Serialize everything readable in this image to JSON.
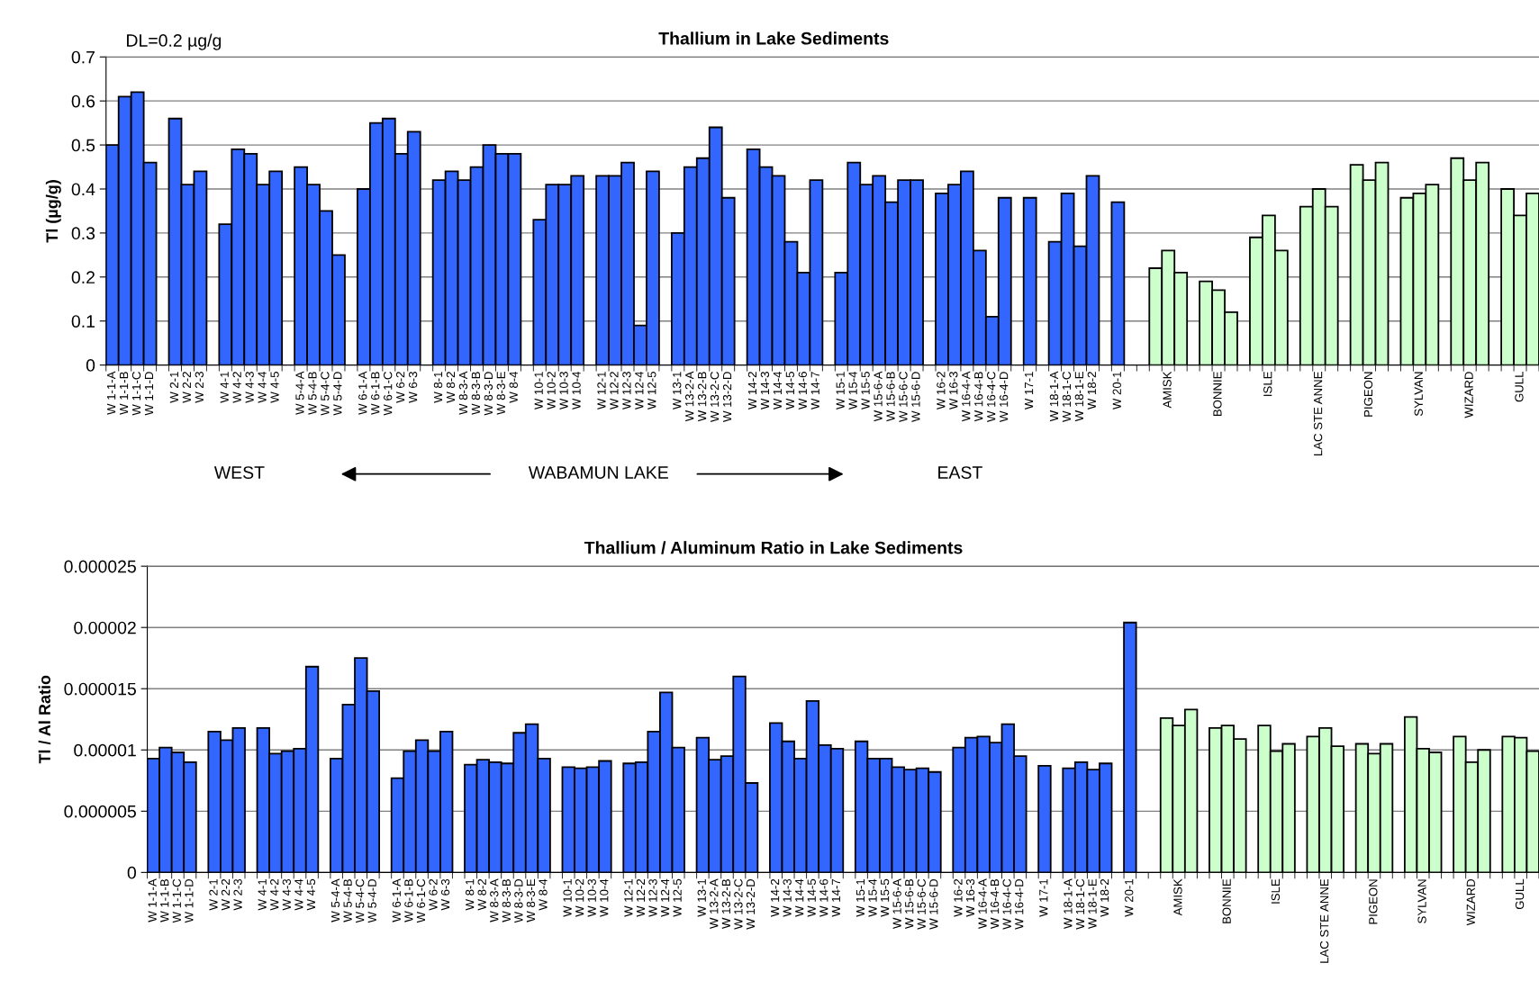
{
  "chart_data": [
    {
      "type": "bar",
      "title": "Thallium in Lake Sediments",
      "ylabel": "Tl (µg/g)",
      "grid": "y",
      "annotations": [
        "DL=0.2 µg/g",
        "WEST",
        "WABAMUN LAKE",
        "EAST"
      ],
      "ylim": [
        0,
        0.7
      ],
      "yticks": [
        0,
        0.1,
        0.2,
        0.3,
        0.4,
        0.5,
        0.6,
        0.7
      ],
      "categories": [
        "W 1-1-A",
        "W 1-1-B",
        "W 1-1-C",
        "W 1-1-D",
        null,
        "W 2-1",
        "W 2-2",
        "W 2-3",
        null,
        "W 4-1",
        "W 4-2",
        "W 4-3",
        "W 4-4",
        "W 4-5",
        null,
        "W 5-4-A",
        "W 5-4-B",
        "W 5-4-C",
        "W 5-4-D",
        null,
        "W 6-1-A",
        "W 6-1-B",
        "W 6-1-C",
        "W 6-2",
        "W 6-3",
        null,
        "W 8-1",
        "W 8-2",
        "W 8-3-A",
        "W 8-3-B",
        "W 8-3-D",
        "W 8-3-E",
        "W 8-4",
        null,
        "W 10-1",
        "W 10-2",
        "W 10-3",
        "W 10-4",
        null,
        "W 12-1",
        "W 12-2",
        "W 12-3",
        "W 12-4",
        "W 12-5",
        null,
        "W 13-1",
        "W 13-2-A",
        "W 13-2-B",
        "W 13-2-C",
        "W 13-2-D",
        null,
        "W 14-2",
        "W 14-3",
        "W 14-4",
        "W 14-5",
        "W 14-6",
        "W 14-7",
        null,
        "W 15-1",
        "W 15-4",
        "W 15-5",
        "W 15-6-A",
        "W 15-6-B",
        "W 15-6-C",
        "W 15-6-D",
        null,
        "W 16-2",
        "W 16-3",
        "W 16-4-A",
        "W 16-4-B",
        "W 16-4-C",
        "W 16-4-D",
        null,
        "W 17-1",
        null,
        "W 18-1-A",
        "W 18-1-C",
        "W 18-1-E",
        "W 18-2",
        null,
        "W 20-1",
        null,
        null,
        null,
        "AMISK",
        null,
        null,
        null,
        "BONNIE",
        null,
        null,
        null,
        "ISLE",
        null,
        null,
        null,
        "LAC STE ANNE",
        null,
        null,
        null,
        "PIGEON",
        null,
        null,
        null,
        "SYLVAN",
        null,
        null,
        null,
        "WIZARD",
        null,
        null,
        null,
        "GULL",
        null
      ],
      "series": [
        {
          "color": "#3366ff",
          "values": [
            0.5,
            0.61,
            0.62,
            0.46,
            null,
            0.56,
            0.41,
            0.44,
            null,
            0.32,
            0.49,
            0.48,
            0.41,
            0.44,
            null,
            0.45,
            0.41,
            0.35,
            0.25,
            null,
            0.4,
            0.55,
            0.56,
            0.48,
            0.53,
            null,
            0.42,
            0.44,
            0.42,
            0.45,
            0.5,
            0.48,
            0.48,
            null,
            0.33,
            0.41,
            0.41,
            0.43,
            null,
            0.43,
            0.43,
            0.46,
            0.09,
            0.44,
            null,
            0.3,
            0.45,
            0.47,
            0.54,
            0.38,
            null,
            0.49,
            0.45,
            0.43,
            0.28,
            0.21,
            0.42,
            null,
            0.21,
            0.46,
            0.41,
            0.43,
            0.37,
            0.42,
            0.42,
            null,
            0.39,
            0.41,
            0.44,
            0.26,
            0.11,
            0.38,
            null,
            0.38,
            null,
            0.28,
            0.39,
            0.27,
            0.43,
            null,
            0.37,
            null,
            null,
            null,
            null,
            null,
            null,
            null,
            null,
            null,
            null,
            null,
            null,
            null,
            null,
            null,
            null,
            null,
            null,
            null,
            null,
            null,
            null,
            null,
            null,
            null,
            null,
            null,
            null,
            null,
            null,
            null,
            null,
            null
          ]
        },
        {
          "color": "#ccffcc",
          "values": [
            null,
            null,
            null,
            null,
            null,
            null,
            null,
            null,
            null,
            null,
            null,
            null,
            null,
            null,
            null,
            null,
            null,
            null,
            null,
            null,
            null,
            null,
            null,
            null,
            null,
            null,
            null,
            null,
            null,
            null,
            null,
            null,
            null,
            null,
            null,
            null,
            null,
            null,
            null,
            null,
            null,
            null,
            null,
            null,
            null,
            null,
            null,
            null,
            null,
            null,
            null,
            null,
            null,
            null,
            null,
            null,
            null,
            null,
            null,
            null,
            null,
            null,
            null,
            null,
            null,
            null,
            null,
            null,
            null,
            null,
            null,
            null,
            null,
            null,
            null,
            null,
            null,
            null,
            null,
            null,
            null,
            null,
            null,
            0.22,
            0.26,
            0.21,
            null,
            0.19,
            0.17,
            0.12,
            null,
            0.29,
            0.34,
            0.26,
            null,
            0.36,
            0.4,
            0.36,
            null,
            0.455,
            0.42,
            0.46,
            null,
            0.38,
            0.39,
            0.41,
            null,
            0.47,
            0.42,
            0.46,
            null,
            0.4,
            0.34,
            0.39
          ]
        }
      ]
    },
    {
      "type": "bar",
      "title": "Thallium / Aluminum Ratio in Lake Sediments",
      "ylabel": "Tl / Al Ratio",
      "grid": "y",
      "ylim": [
        0,
        2.5e-05
      ],
      "yticks": [
        0,
        {
          "value": 5e-06,
          "label": "0.000005"
        },
        {
          "value": 1e-05,
          "label": "0.00001"
        },
        {
          "value": 1.5e-05,
          "label": "0.000015"
        },
        {
          "value": 2e-05,
          "label": "0.00002"
        },
        {
          "value": 2.5e-05,
          "label": "0.000025"
        }
      ],
      "categories": [
        "W 1-1-A",
        "W 1-1-B",
        "W 1-1-C",
        "W 1-1-D",
        null,
        "W 2-1",
        "W 2-2",
        "W 2-3",
        null,
        "W 4-1",
        "W 4-2",
        "W 4-3",
        "W 4-4",
        "W 4-5",
        null,
        "W 5-4-A",
        "W 5-4-B",
        "W 5-4-C",
        "W 5-4-D",
        null,
        "W 6-1-A",
        "W 6-1-B",
        "W 6-1-C",
        "W 6-2",
        "W 6-3",
        null,
        "W 8-1",
        "W 8-2",
        "W 8-3-A",
        "W 8-3-B",
        "W 8-3-D",
        "W 8-3-E",
        "W 8-4",
        null,
        "W 10-1",
        "W 10-2",
        "W 10-3",
        "W 10-4",
        null,
        "W 12-1",
        "W 12-2",
        "W 12-3",
        "W 12-4",
        "W 12-5",
        null,
        "W 13-1",
        "W 13-2-A",
        "W 13-2-B",
        "W 13-2-C",
        "W 13-2-D",
        null,
        "W 14-2",
        "W 14-3",
        "W 14-4",
        "W 14-5",
        "W 14-6",
        "W 14-7",
        null,
        "W 15-1",
        "W 15-4",
        "W 15-5",
        "W 15-6-A",
        "W 15-6-B",
        "W 15-6-C",
        "W 15-6-D",
        null,
        "W 16-2",
        "W 16-3",
        "W 16-4-A",
        "W 16-4-B",
        "W 16-4-C",
        "W 16-4-D",
        null,
        "W 17-1",
        null,
        "W 18-1-A",
        "W 18-1-C",
        "W 18-1-E",
        "W 18-2",
        null,
        "W 20-1",
        null,
        null,
        null,
        "AMISK",
        null,
        null,
        null,
        "BONNIE",
        null,
        null,
        null,
        "ISLE",
        null,
        null,
        null,
        "LAC STE ANNE",
        null,
        null,
        null,
        "PIGEON",
        null,
        null,
        null,
        "SYLVAN",
        null,
        null,
        null,
        "WIZARD",
        null,
        null,
        null,
        "GULL",
        null
      ],
      "series": [
        {
          "color": "#3366ff",
          "values": [
            9.3e-06,
            1.02e-05,
            9.8e-06,
            9e-06,
            null,
            1.15e-05,
            1.08e-05,
            1.18e-05,
            null,
            1.18e-05,
            9.7e-06,
            9.9e-06,
            1.01e-05,
            1.68e-05,
            null,
            9.3e-06,
            1.37e-05,
            1.75e-05,
            1.48e-05,
            null,
            7.7e-06,
            9.9e-06,
            1.08e-05,
            9.9e-06,
            1.15e-05,
            null,
            8.8e-06,
            9.2e-06,
            9e-06,
            8.9e-06,
            1.14e-05,
            1.21e-05,
            9.3e-06,
            null,
            8.6e-06,
            8.5e-06,
            8.6e-06,
            9.1e-06,
            null,
            8.9e-06,
            9e-06,
            1.15e-05,
            1.47e-05,
            1.02e-05,
            null,
            1.1e-05,
            9.2e-06,
            9.5e-06,
            1.6e-05,
            7.3e-06,
            null,
            1.22e-05,
            1.07e-05,
            9.3e-06,
            1.4e-05,
            1.04e-05,
            1.01e-05,
            null,
            1.07e-05,
            9.3e-06,
            9.3e-06,
            8.6e-06,
            8.4e-06,
            8.5e-06,
            8.2e-06,
            null,
            1.02e-05,
            1.1e-05,
            1.11e-05,
            1.06e-05,
            1.21e-05,
            9.5e-06,
            null,
            8.7e-06,
            null,
            8.5e-06,
            9e-06,
            8.4e-06,
            8.9e-06,
            null,
            2.04e-05,
            null,
            null,
            null,
            null,
            null,
            null,
            null,
            null,
            null,
            null,
            null,
            null,
            null,
            null,
            null,
            null,
            null,
            null,
            null,
            null,
            null,
            null,
            null,
            null,
            null,
            null,
            null,
            null,
            null,
            null,
            null,
            null,
            null
          ]
        },
        {
          "color": "#ccffcc",
          "values": [
            null,
            null,
            null,
            null,
            null,
            null,
            null,
            null,
            null,
            null,
            null,
            null,
            null,
            null,
            null,
            null,
            null,
            null,
            null,
            null,
            null,
            null,
            null,
            null,
            null,
            null,
            null,
            null,
            null,
            null,
            null,
            null,
            null,
            null,
            null,
            null,
            null,
            null,
            null,
            null,
            null,
            null,
            null,
            null,
            null,
            null,
            null,
            null,
            null,
            null,
            null,
            null,
            null,
            null,
            null,
            null,
            null,
            null,
            null,
            null,
            null,
            null,
            null,
            null,
            null,
            null,
            null,
            null,
            null,
            null,
            null,
            null,
            null,
            null,
            null,
            null,
            null,
            null,
            null,
            null,
            null,
            null,
            null,
            1.26e-05,
            1.2e-05,
            1.33e-05,
            null,
            1.18e-05,
            1.2e-05,
            1.09e-05,
            null,
            1.2e-05,
            9.9e-06,
            1.05e-05,
            null,
            1.11e-05,
            1.18e-05,
            1.03e-05,
            null,
            1.05e-05,
            9.7e-06,
            1.05e-05,
            null,
            1.27e-05,
            1.01e-05,
            9.8e-06,
            null,
            1.11e-05,
            9e-06,
            1e-05,
            null,
            1.11e-05,
            1.1e-05,
            9.9e-06
          ]
        }
      ]
    }
  ]
}
